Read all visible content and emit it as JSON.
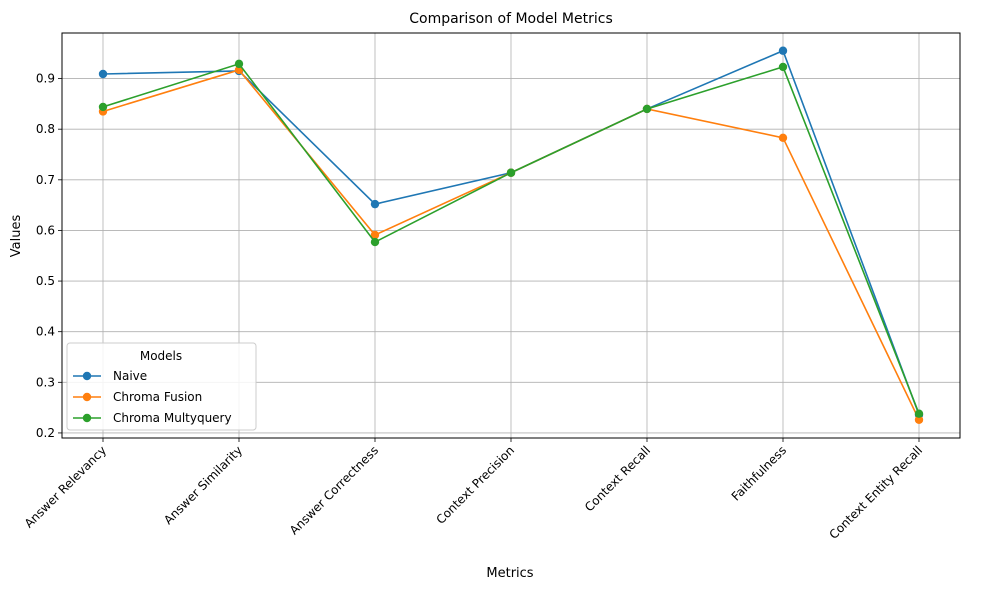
{
  "chart_data": {
    "type": "line",
    "title": "Comparison of Model Metrics",
    "xlabel": "Metrics",
    "ylabel": "Values",
    "categories": [
      "Answer Relevancy",
      "Answer Similarity",
      "Answer Correctness",
      "Context Precision",
      "Context Recall",
      "Faithfulness",
      "Context Entity Recall"
    ],
    "ylim": [
      0.19,
      0.99
    ],
    "yticks": [
      "0.2",
      "0.3",
      "0.4",
      "0.5",
      "0.6",
      "0.7",
      "0.8",
      "0.9"
    ],
    "grid": true,
    "legend": {
      "title": "Models",
      "placement": "lower-left"
    },
    "series": [
      {
        "name": "Naive",
        "color": "#1f77b4",
        "values": [
          0.909,
          0.915,
          0.652,
          0.714,
          0.84,
          0.955,
          0.236
        ]
      },
      {
        "name": "Chroma Fusion",
        "color": "#ff7f0e",
        "values": [
          0.835,
          0.917,
          0.591,
          0.714,
          0.84,
          0.783,
          0.226
        ]
      },
      {
        "name": "Chroma Multyquery",
        "color": "#2ca02c",
        "values": [
          0.844,
          0.929,
          0.577,
          0.714,
          0.84,
          0.923,
          0.238
        ]
      }
    ]
  }
}
